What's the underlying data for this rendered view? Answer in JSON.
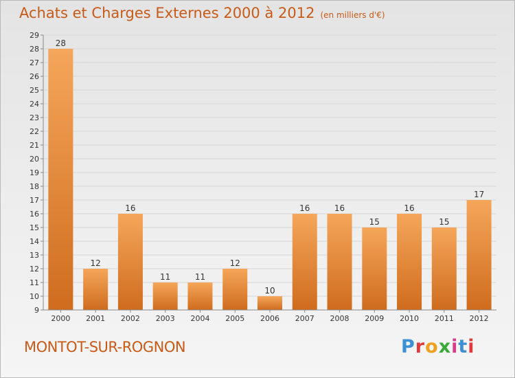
{
  "header": {
    "title": "Achats et Charges Externes 2000 à 2012",
    "unit": "(en milliers d'€)"
  },
  "footer": {
    "commune": "MONTOT-SUR-ROGNON",
    "logo_text": "Proxiti"
  },
  "colors": {
    "bar_light": "#f5a65a",
    "bar_dark": "#cf6c1e",
    "text_accent": "#c85a18",
    "logo_letters": [
      "#3d8fd6",
      "#e03a3a",
      "#f0a020",
      "#3aa83a",
      "#d63a8a",
      "#3d8fd6",
      "#e03a3a"
    ]
  },
  "chart_data": {
    "type": "bar",
    "title": "Achats et Charges Externes 2000 à 2012",
    "subtitle": "(en milliers d'€)",
    "xlabel": "",
    "ylabel": "",
    "categories": [
      "2000",
      "2001",
      "2002",
      "2003",
      "2004",
      "2005",
      "2006",
      "2007",
      "2008",
      "2009",
      "2010",
      "2011",
      "2012"
    ],
    "values": [
      28,
      12,
      16,
      11,
      11,
      12,
      10,
      16,
      16,
      15,
      16,
      15,
      17
    ],
    "ylim": [
      9,
      29
    ],
    "yticks": [
      9,
      10,
      11,
      12,
      13,
      14,
      15,
      16,
      17,
      18,
      19,
      20,
      21,
      22,
      23,
      24,
      25,
      26,
      27,
      28,
      29
    ],
    "grid": true,
    "legend": "none",
    "data_labels": true
  }
}
